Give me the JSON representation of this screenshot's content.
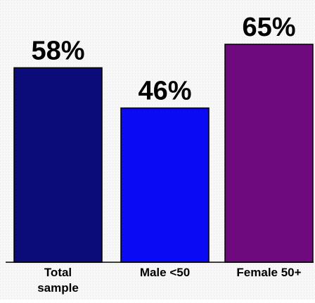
{
  "chart_data": {
    "type": "bar",
    "categories": [
      "Total sample",
      "Male <50",
      "Female 50+"
    ],
    "category_labels": [
      [
        "Total",
        "sample"
      ],
      [
        "Male <50"
      ],
      [
        "Female 50+"
      ]
    ],
    "values": [
      58,
      46,
      65
    ],
    "data_labels": [
      "58%",
      "46%",
      "65%"
    ],
    "colors": [
      "#0b0b7a",
      "#0a0af5",
      "#6e0a7e"
    ],
    "ylim": [
      0,
      65
    ],
    "grid": false,
    "legend": "none"
  }
}
